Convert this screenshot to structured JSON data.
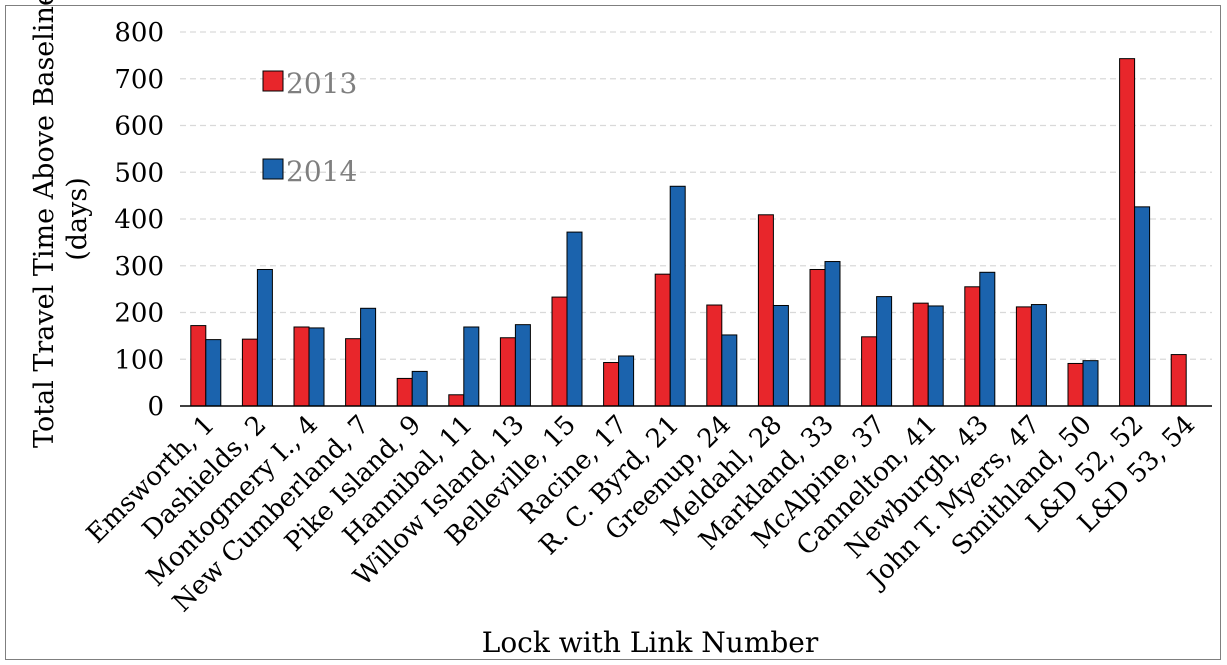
{
  "chart_data": {
    "type": "bar",
    "xlabel": "Lock with Link Number",
    "ylabel_line1": "Total Travel Time Above Baseline",
    "ylabel_line2": "(days)",
    "ylim": [
      0,
      800
    ],
    "yticks": [
      0,
      100,
      200,
      300,
      400,
      500,
      600,
      700,
      800
    ],
    "grid": "horizontal dashed",
    "legend_position": "top-left",
    "categories": [
      "Emsworth, 1",
      "Dashields, 2",
      "Montogmery I., 4",
      "New Cumberland, 7",
      "Pike Island, 9",
      "Hannibal, 11",
      "Willow Island, 13",
      "Belleville, 15",
      "Racine, 17",
      "R. C. Byrd, 21",
      "Greenup, 24",
      "Meldahl, 28",
      "Markland, 33",
      "McAlpine, 37",
      "Cannelton, 41",
      "Newburgh, 43",
      "John T. Myers, 47",
      "Smithland, 50",
      "L&D 52, 52",
      "L&D 53, 54"
    ],
    "series": [
      {
        "name": "2013",
        "color": "#e8262b",
        "values": [
          172,
          143,
          169,
          144,
          59,
          24,
          146,
          233,
          93,
          282,
          216,
          409,
          292,
          148,
          220,
          255,
          212,
          91,
          743,
          110
        ]
      },
      {
        "name": "2014",
        "color": "#1b63ad",
        "values": [
          142,
          292,
          167,
          209,
          74,
          169,
          174,
          372,
          107,
          470,
          152,
          215,
          309,
          234,
          214,
          286,
          217,
          97,
          426,
          null
        ]
      }
    ]
  }
}
